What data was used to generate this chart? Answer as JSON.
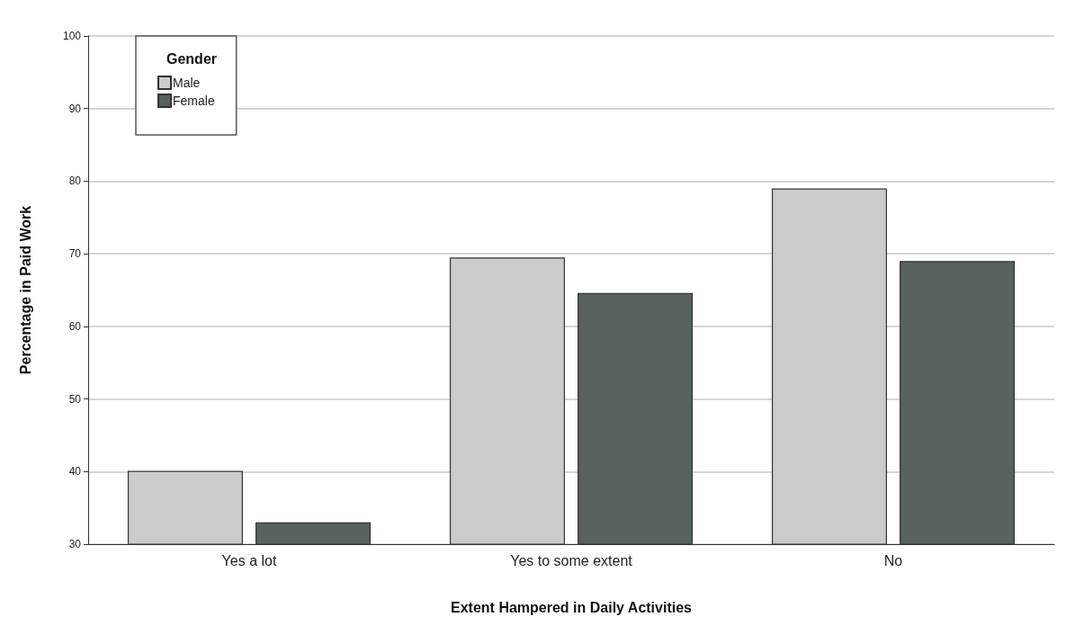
{
  "chart_data": {
    "type": "bar",
    "xlabel": "Extent Hampered in Daily Activities",
    "ylabel": "Percentage in Paid Work",
    "legend_title": "Gender",
    "categories": [
      "Yes a lot",
      "Yes to some extent",
      "No"
    ],
    "series": [
      {
        "name": "Male",
        "color": "#cccccc",
        "values": [
          40.1,
          69.5,
          79.0
        ]
      },
      {
        "name": "Female",
        "color": "#59625c",
        "values": [
          33.0,
          64.6,
          69.0
        ]
      }
    ],
    "ylim": [
      30,
      100
    ],
    "yticks": [
      30,
      40,
      50,
      60,
      70,
      80,
      90,
      100
    ],
    "grid": "y",
    "legend": "top left"
  }
}
